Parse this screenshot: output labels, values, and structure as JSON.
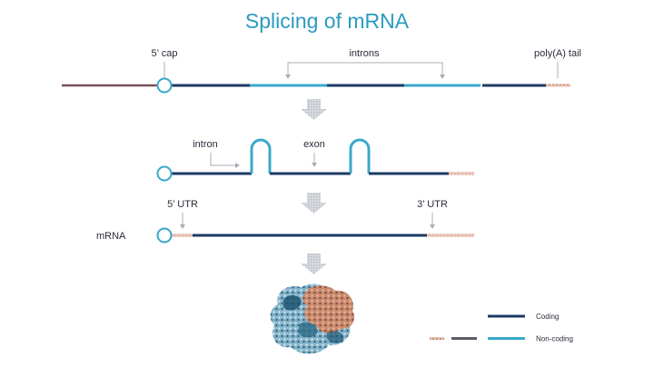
{
  "title": "Splicing of mRNA",
  "labels": {
    "cap": "5’ cap",
    "introns": "introns",
    "polya": "poly(A) tail",
    "intron": "intron",
    "exon": "exon",
    "utr5": "5’ UTR",
    "utr3": "3’ UTR",
    "mrna": "mRNA"
  },
  "legend": {
    "coding": "Coding",
    "noncoding": "Non-coding"
  },
  "colors": {
    "title": "#2a9bbf",
    "coding": "#1b3a63",
    "noncoding": "#3aa8c9",
    "utr": "#d9a795",
    "leader": "#7a5060",
    "grey_segment": "#5c5c66",
    "arrow": "#c9cdd3",
    "pointer": "#a9afb6",
    "protein_blue": "#6c9fb9",
    "protein_orange": "#c98a6e"
  }
}
